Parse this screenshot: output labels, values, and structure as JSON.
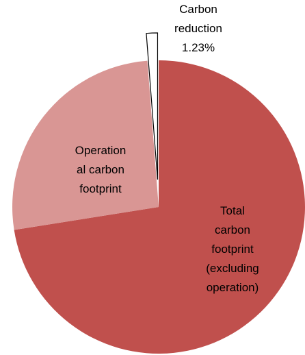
{
  "chart_data": {
    "type": "pie",
    "categories": [
      "Total\ncarbon\nfootprint\n(excluding\noperation)",
      "Operation\nal carbon\nfootprint",
      "Carbon\nreduction"
    ],
    "values": [
      72.5,
      26.27,
      1.23
    ],
    "value_labels": [
      null,
      null,
      "1.23%"
    ],
    "colors": [
      "#c0504d",
      "#d99694",
      "#ffffff"
    ]
  }
}
